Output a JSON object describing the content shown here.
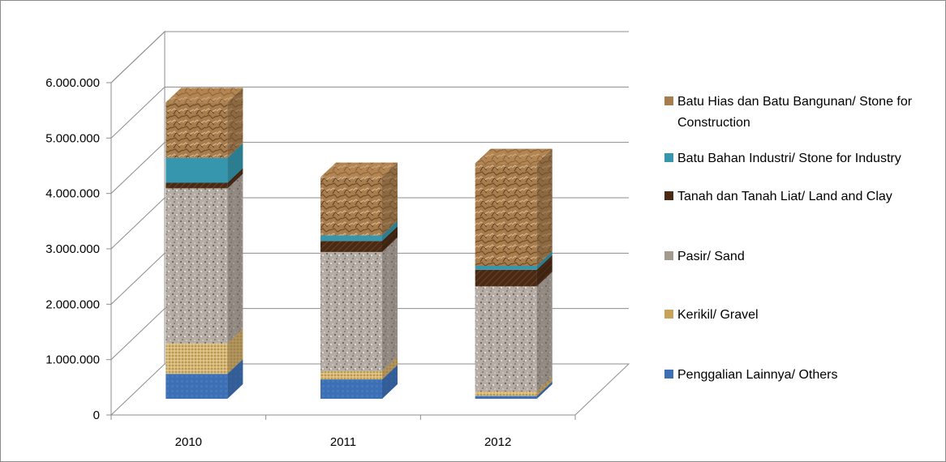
{
  "chart_data": {
    "type": "bar",
    "stacked": true,
    "three_d": true,
    "categories": [
      "2010",
      "2011",
      "2012"
    ],
    "ylim": [
      0,
      6000000
    ],
    "yticks": [
      "0",
      "1.000.000",
      "2.000.000",
      "3.000.000",
      "4.000.000",
      "5.000.000",
      "6.000.000"
    ],
    "grid": true,
    "legend_position": "right",
    "series": [
      {
        "name": "Penggalian Lainnya/ Others",
        "values": [
          450000,
          350000,
          50000
        ],
        "color": "#3d6fb5"
      },
      {
        "name": "Kerikil/ Gravel",
        "values": [
          550000,
          150000,
          80000
        ],
        "color": "#c9a25c"
      },
      {
        "name": "Pasir/ Sand",
        "values": [
          2800000,
          2150000,
          1900000
        ],
        "color": "#a59a90"
      },
      {
        "name": "Tanah dan Tanah Liat/ Land and Clay",
        "values": [
          100000,
          200000,
          300000
        ],
        "color": "#4a2a14"
      },
      {
        "name": "Batu Bahan Industri/ Stone for Industry",
        "values": [
          450000,
          100000,
          70000
        ],
        "color": "#3596ad"
      },
      {
        "name": "Batu Hias dan Batu Bangunan/ Stone for Construction",
        "values": [
          1000000,
          1050000,
          1850000
        ],
        "color": "#a87d4e"
      }
    ]
  },
  "legend_order": [
    5,
    4,
    3,
    2,
    1,
    0
  ]
}
